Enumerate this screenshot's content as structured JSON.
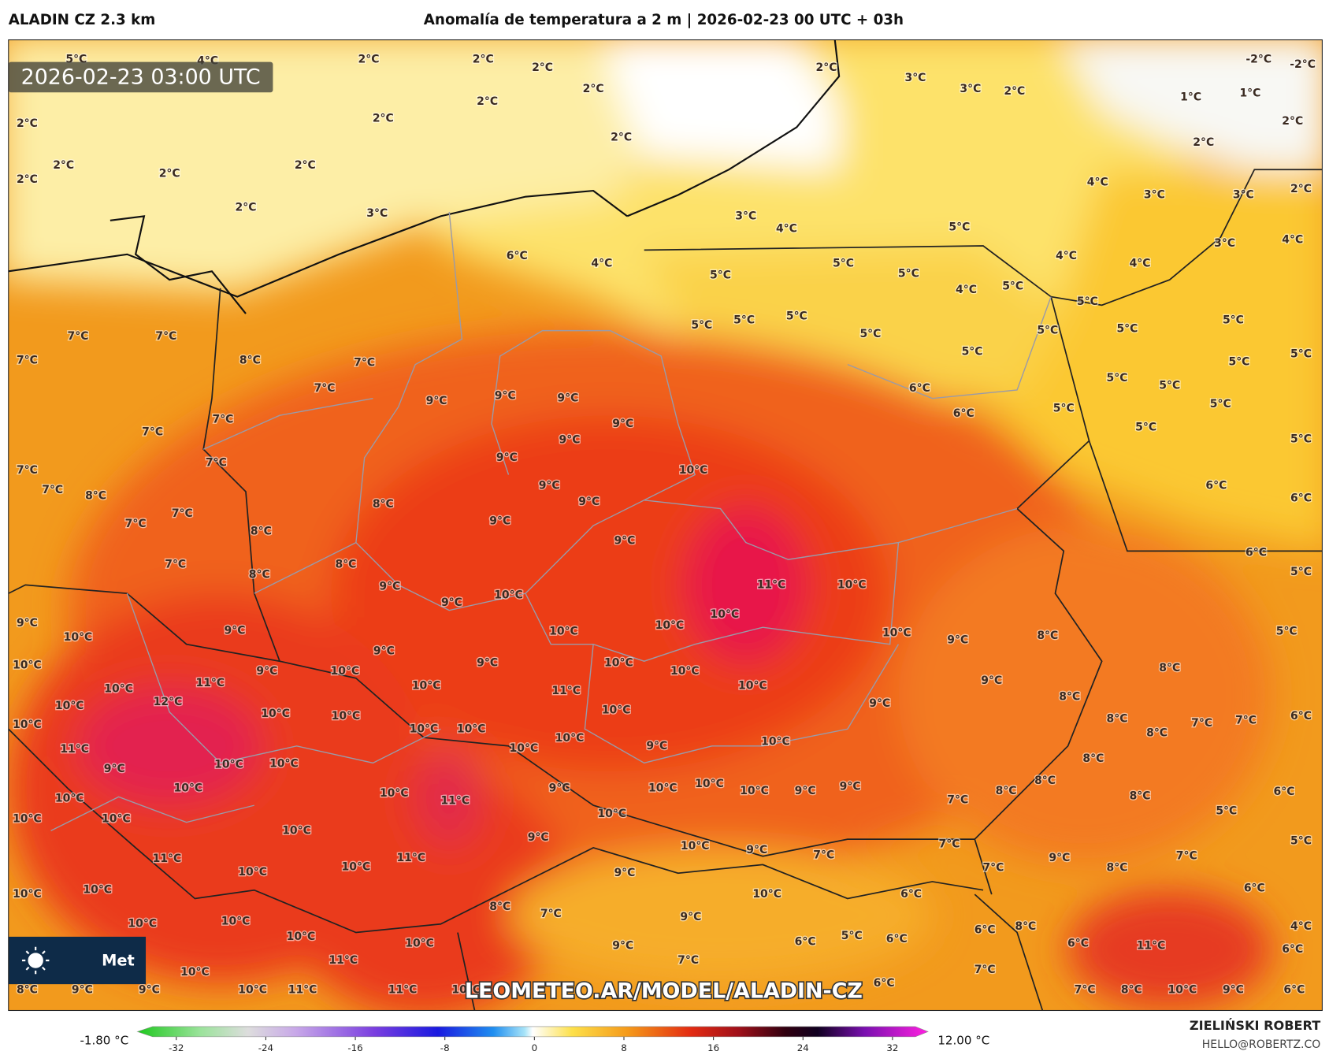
{
  "header": {
    "model": "ALADIN CZ 2.3 km",
    "title": "Anomalía de temperatura a 2 m | 2026-02-23 00 UTC + 03h"
  },
  "timestamp": "2026-02-23 03:00 UTC",
  "watermark": "LEOMETEO.AR/MODEL/ALADIN-CZ",
  "logo_text": "Met",
  "map_labels": [
    "5°C",
    "4°C",
    "2°C",
    "2°C",
    "2°C",
    "2°C",
    "2°C",
    "2°C",
    "2°C",
    "2°C",
    "2°C",
    "2°C",
    "2°C",
    "2°C",
    "2°C",
    "3°C",
    "2°C",
    "3°C",
    "3°C",
    "2°C",
    "-2°C",
    "-2°C",
    "1°C",
    "1°C",
    "2°C",
    "2°C",
    "4°C",
    "3°C",
    "3°C",
    "2°C",
    "3°C",
    "4°C",
    "5°C",
    "3°C",
    "4°C",
    "6°C",
    "4°C",
    "5°C",
    "5°C",
    "5°C",
    "4°C",
    "4°C",
    "4°C",
    "5°C",
    "5°C",
    "5°C",
    "5°C",
    "5°C",
    "5°C",
    "5°C",
    "5°C",
    "5°C",
    "5°C",
    "5°C",
    "7°C",
    "7°C",
    "7°C",
    "8°C",
    "7°C",
    "7°C",
    "5°C",
    "5°C",
    "5°C",
    "6°C",
    "6°C",
    "5°C",
    "5°C",
    "5°C",
    "5°C",
    "9°C",
    "9°C",
    "9°C",
    "9°C",
    "9°C",
    "9°C",
    "7°C",
    "7°C",
    "7°C",
    "7°C",
    "7°C",
    "8°C",
    "7°C",
    "7°C",
    "8°C",
    "8°C",
    "9°C",
    "9°C",
    "9°C",
    "10°C",
    "6°C",
    "6°C",
    "9°C",
    "6°C",
    "5°C",
    "7°C",
    "8°C",
    "8°C",
    "9°C",
    "9°C",
    "10°C",
    "11°C",
    "10°C",
    "10°C",
    "10°C",
    "10°C",
    "10°C",
    "9°C",
    "8°C",
    "5°C",
    "9°C",
    "10°C",
    "9°C",
    "9°C",
    "9°C",
    "10°C",
    "10°C",
    "8°C",
    "10°C",
    "11°C",
    "10°C",
    "12°C",
    "9°C",
    "10°C",
    "10°C",
    "11°C",
    "10°C",
    "9°C",
    "8°C",
    "9°C",
    "10°C",
    "10°C",
    "10°C",
    "10°C",
    "8°C",
    "8°C",
    "7°C",
    "7°C",
    "6°C",
    "10°C",
    "11°C",
    "10°C",
    "10°C",
    "10°C",
    "10°C",
    "10°C",
    "9°C",
    "8°C",
    "9°C",
    "10°C",
    "10°C",
    "10°C",
    "10°C",
    "9°C",
    "10°C",
    "10°C",
    "10°C",
    "9°C",
    "9°C",
    "8°C",
    "8°C",
    "7°C",
    "8°C",
    "6°C",
    "10°C",
    "11°C",
    "10°C",
    "10°C",
    "10°C",
    "5°C",
    "10°C",
    "9°C",
    "10°C",
    "9°C",
    "7°C",
    "7°C",
    "5°C",
    "11°C",
    "11°C",
    "10°C",
    "10°C",
    "7°C",
    "9°C",
    "8°C",
    "7°C",
    "9°C",
    "10°C",
    "10°C",
    "10°C",
    "6°C",
    "6°C",
    "8°C",
    "7°C",
    "9°C",
    "10°C",
    "10°C",
    "8°C",
    "6°C",
    "4°C",
    "10°C",
    "10°C",
    "9°C",
    "6°C",
    "5°C",
    "6°C",
    "6°C",
    "11°C",
    "6°C",
    "11°C",
    "7°C",
    "10°C",
    "7°C",
    "8°C",
    "9°C",
    "9°C",
    "10°C",
    "11°C",
    "11°C",
    "10°C",
    "6°C",
    "7°C",
    "8°C",
    "10°C",
    "9°C",
    "6°C"
  ],
  "colorbar": {
    "min_label": "-1.80 °C",
    "max_label": "12.00 °C",
    "ticks": [
      -32,
      -24,
      -16,
      -8,
      0,
      8,
      16,
      24,
      32
    ]
  },
  "credit": {
    "author": "ZIELIŃSKI ROBERT",
    "contact": "HELLO@ROBERTZ.CO"
  }
}
